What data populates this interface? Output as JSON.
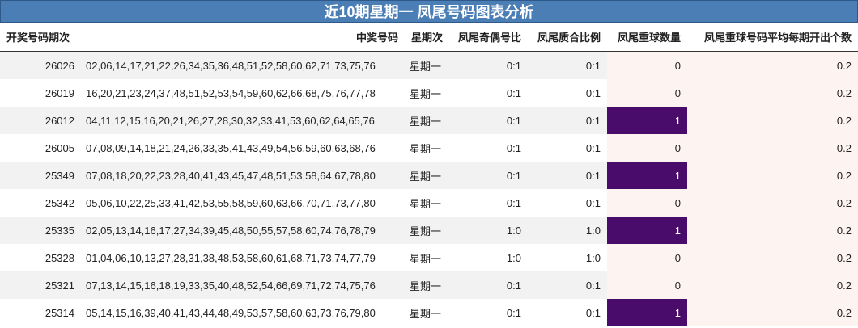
{
  "title": "近10期星期一 凤尾号码图表分析",
  "table": {
    "header": [
      "开奖号码期次",
      "中奖号码",
      "星期次",
      "凤尾奇偶号比",
      "凤尾质合比例",
      "凤尾重球数量",
      "凤尾重球号码平均每期开出个数"
    ],
    "rows": [
      [
        26026,
        "02,06,14,17,21,22,26,34,35,36,48,51,52,58,60,62,71,73,75,76",
        "星期一",
        "0:1",
        "0:1",
        0,
        0.2
      ],
      [
        26019,
        "16,20,21,23,24,37,48,51,52,53,54,59,60,62,66,68,75,76,77,78",
        "星期一",
        "0:1",
        "0:1",
        0,
        0.2
      ],
      [
        26012,
        "04,11,12,15,16,20,21,26,27,28,30,32,33,41,53,60,62,64,65,76",
        "星期一",
        "0:1",
        "0:1",
        1,
        0.2
      ],
      [
        26005,
        "07,08,09,14,18,21,24,26,33,35,41,43,49,54,56,59,60,63,68,76",
        "星期一",
        "0:1",
        "0:1",
        0,
        0.2
      ],
      [
        25349,
        "07,08,18,20,22,23,28,40,41,43,45,47,48,51,53,58,64,67,78,80",
        "星期一",
        "0:1",
        "0:1",
        1,
        0.2
      ],
      [
        25342,
        "05,06,10,22,25,33,41,42,53,55,58,59,60,63,66,70,71,73,77,80",
        "星期一",
        "0:1",
        "0:1",
        0,
        0.2
      ],
      [
        25335,
        "02,05,13,14,16,17,27,34,39,45,48,50,55,57,58,60,74,76,78,79",
        "星期一",
        "1:0",
        "1:0",
        1,
        0.2
      ],
      [
        25328,
        "01,04,06,10,13,27,28,31,38,48,53,58,60,61,68,71,73,74,77,79",
        "星期一",
        "1:0",
        "1:0",
        0,
        0.2
      ],
      [
        25321,
        "07,13,14,15,16,18,19,33,35,40,48,52,54,66,69,71,72,74,75,76",
        "星期一",
        "0:1",
        "0:1",
        0,
        0.2
      ],
      [
        25314,
        "05,14,15,16,39,40,41,43,44,48,49,53,57,58,60,63,73,76,79,80",
        "星期一",
        "0:1",
        "0:1",
        1,
        0.2
      ]
    ]
  }
}
